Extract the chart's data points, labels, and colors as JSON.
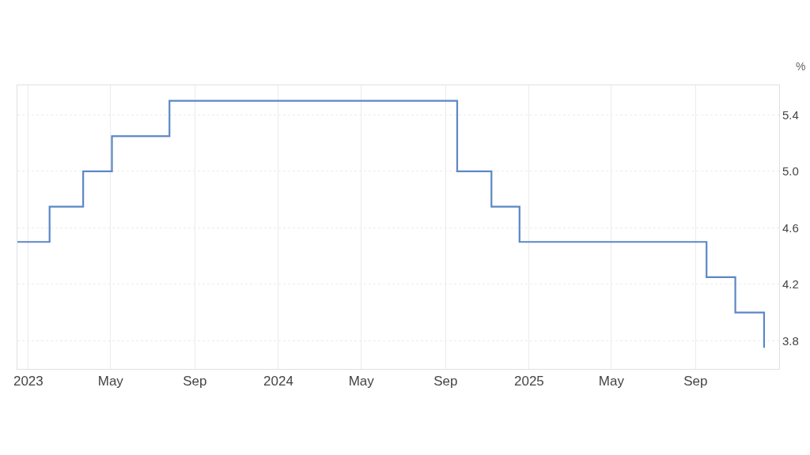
{
  "chart_data": {
    "type": "step",
    "ylabel": "%",
    "x": [
      "2022-12-16",
      "2023-02-01",
      "2023-03-22",
      "2023-05-03",
      "2023-07-26",
      "2024-09-18",
      "2024-11-07",
      "2024-12-18",
      "2025-09-17",
      "2025-10-29",
      "2025-12-10"
    ],
    "series": [
      {
        "color": "#5b87c5",
        "values": [
          4.5,
          4.75,
          5.0,
          5.25,
          5.5,
          5.0,
          4.75,
          4.5,
          4.25,
          4.0,
          3.75
        ]
      }
    ],
    "xlim": [
      "2022-12-16",
      "2026-01-01"
    ],
    "xticks": [
      {
        "value": "2023-01-01",
        "label": "2023"
      },
      {
        "value": "2023-05-01",
        "label": "May"
      },
      {
        "value": "2023-09-01",
        "label": "Sep"
      },
      {
        "value": "2024-01-01",
        "label": "2024"
      },
      {
        "value": "2024-05-01",
        "label": "May"
      },
      {
        "value": "2024-09-01",
        "label": "Sep"
      },
      {
        "value": "2025-01-01",
        "label": "2025"
      },
      {
        "value": "2025-05-01",
        "label": "May"
      },
      {
        "value": "2025-09-01",
        "label": "Sep"
      }
    ],
    "ylim": [
      3.6,
      5.61
    ],
    "yticks": [
      {
        "value": 3.8,
        "label": "3.8"
      },
      {
        "value": 4.2,
        "label": "4.2"
      },
      {
        "value": 4.6,
        "label": "4.6"
      },
      {
        "value": 5.0,
        "label": "5.0"
      },
      {
        "value": 5.4,
        "label": "5.4"
      }
    ],
    "grid": true
  }
}
